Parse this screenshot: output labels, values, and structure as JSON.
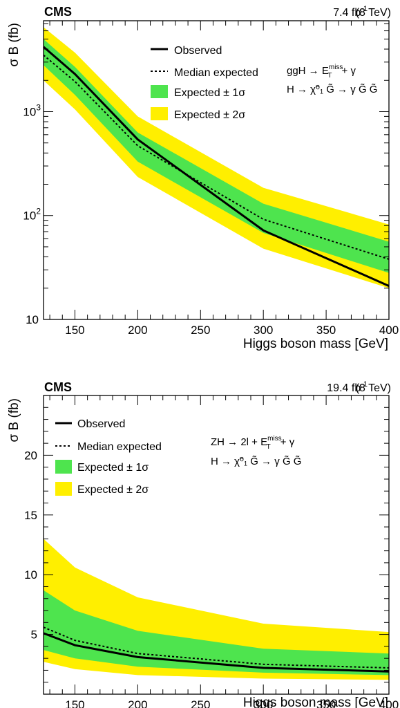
{
  "chart_data": [
    {
      "type": "line",
      "experiment": "CMS",
      "lumi_label": "7.4 fb",
      "lumi_sup": "-1",
      "energy_label": "(8 TeV)",
      "xlabel": "Higgs boson mass [GeV]",
      "ylabel": "σ B (fb)",
      "yscale": "log",
      "xlim": [
        125,
        400
      ],
      "ylim": [
        10,
        7500
      ],
      "x_ticks": [
        "150",
        "200",
        "250",
        "300",
        "350",
        "400"
      ],
      "y_ticks": [
        "10",
        "10",
        "10"
      ],
      "y_tick_exponents": [
        "",
        "2",
        "3"
      ],
      "process_line1": "ggH → E",
      "process_line1_sup": "miss",
      "process_line1_sub": "T",
      "process_line1_tail": "+ γ",
      "process_line2": "H → χ̃⁰₁ G̃ → γ G̃ G̃",
      "legend": [
        {
          "label": "Observed",
          "style": "solid"
        },
        {
          "label": "Median expected",
          "style": "dotted"
        },
        {
          "label": "Expected ± 1σ",
          "style": "band1"
        },
        {
          "label": "Expected ± 2σ",
          "style": "band2"
        }
      ],
      "x": [
        125,
        150,
        200,
        300,
        400
      ],
      "series": [
        {
          "name": "Observed",
          "values": [
            4200,
            2300,
            540,
            72,
            21
          ]
        },
        {
          "name": "Median expected",
          "values": [
            3500,
            1950,
            470,
            92,
            38
          ]
        }
      ],
      "bands": {
        "one_sigma_low": [
          2800,
          1450,
          330,
          68,
          28
        ],
        "one_sigma_high": [
          5000,
          2700,
          630,
          130,
          56
        ],
        "two_sigma_low": [
          2000,
          1050,
          235,
          48,
          20
        ],
        "two_sigma_high": [
          6500,
          3700,
          900,
          185,
          82
        ]
      }
    },
    {
      "type": "line",
      "experiment": "CMS",
      "lumi_label": "19.4 fb",
      "lumi_sup": "-1",
      "energy_label": "(8 TeV)",
      "xlabel": "Higgs boson mass [GeV]",
      "ylabel": "σ B (fb)",
      "yscale": "linear",
      "xlim": [
        125,
        400
      ],
      "ylim": [
        0,
        25
      ],
      "x_ticks": [
        "150",
        "200",
        "250",
        "300",
        "350",
        "400"
      ],
      "y_ticks": [
        "5",
        "10",
        "15",
        "20"
      ],
      "process_line1": "ZH → 2l + E",
      "process_line1_sup": "miss",
      "process_line1_sub": "T",
      "process_line1_tail": "+ γ",
      "process_line2": "H → χ̃⁰₁ G̃ → γ G̃ G̃",
      "legend": [
        {
          "label": "Observed",
          "style": "solid"
        },
        {
          "label": "Median expected",
          "style": "dotted"
        },
        {
          "label": "Expected ± 1σ",
          "style": "band1"
        },
        {
          "label": "Expected ± 2σ",
          "style": "band2"
        }
      ],
      "x": [
        125,
        150,
        200,
        300,
        400
      ],
      "series": [
        {
          "name": "Observed",
          "values": [
            5.1,
            4.1,
            3.1,
            2.2,
            1.9
          ]
        },
        {
          "name": "Median expected",
          "values": [
            5.6,
            4.5,
            3.4,
            2.5,
            2.2
          ]
        }
      ],
      "bands": {
        "one_sigma_low": [
          3.7,
          3.0,
          2.3,
          1.8,
          1.6
        ],
        "one_sigma_high": [
          8.7,
          7.0,
          5.3,
          3.8,
          3.4
        ],
        "two_sigma_low": [
          2.7,
          2.1,
          1.6,
          1.3,
          1.2
        ],
        "two_sigma_high": [
          13.0,
          10.6,
          8.1,
          5.9,
          5.2
        ]
      }
    }
  ],
  "colors": {
    "band_one_sigma": "#4ee44e",
    "band_two_sigma": "#ffef00",
    "line": "#000000"
  }
}
